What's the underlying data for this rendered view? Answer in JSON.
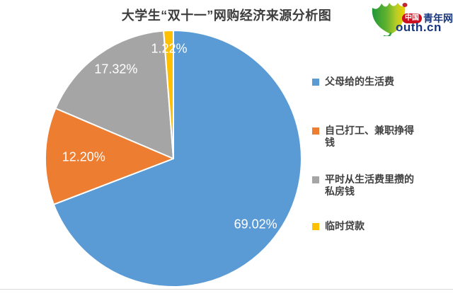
{
  "title": "大学生“双十一”网购经济来源分析图",
  "title_color": "#3d3d3d",
  "logo": {
    "badge_text": "中国",
    "brand_text": "青年网",
    "domain_text": "outh.cn",
    "leaf_icon": "ginkgo-leaf-icon",
    "badge_color": "#cc1020",
    "text_color": "#17357f",
    "leaf_green": "#1f9638",
    "leaf_yellow": "#f0d500",
    "leaf_tip_red": "#c1272d"
  },
  "chart_data": {
    "type": "pie",
    "title": "大学生“双十一”网购经济来源分析图",
    "direction": "clockwise",
    "start_angle_deg": 0,
    "legend_position": "right",
    "slices": [
      {
        "label": "父母给的生活费",
        "value": 69.02,
        "display": "69.02%",
        "color": "#5B9BD5"
      },
      {
        "label": "自己打工、兼职挣得钱",
        "value": 12.2,
        "display": "12.20%",
        "color": "#ED7D31"
      },
      {
        "label": "平时从生活费里攒的私房钱",
        "value": 17.32,
        "display": "17.32%",
        "color": "#A5A5A5"
      },
      {
        "label": "临时贷款",
        "value": 1.22,
        "display": "1.22%",
        "color": "#FFC000"
      }
    ]
  },
  "legend": {
    "items": [
      {
        "lines": [
          "父母给的生活费"
        ],
        "color": "#5B9BD5"
      },
      {
        "lines": [
          "自己打工、兼职挣得",
          "钱"
        ],
        "color": "#ED7D31"
      },
      {
        "lines": [
          "平时从生活费里攒的",
          "私房钱"
        ],
        "color": "#A5A5A5"
      },
      {
        "lines": [
          "临时贷款"
        ],
        "color": "#FFC000"
      }
    ]
  }
}
